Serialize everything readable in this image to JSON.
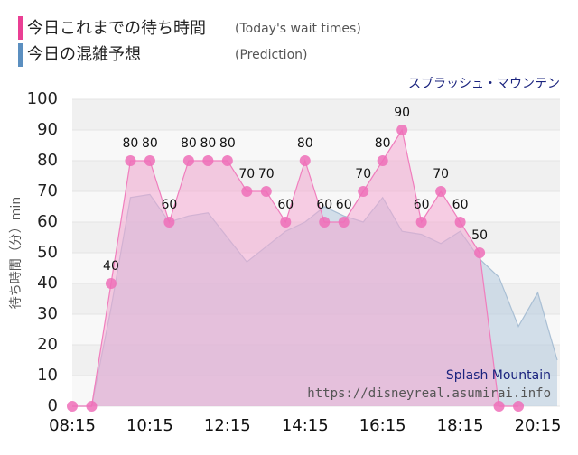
{
  "chart_data": {
    "type": "area",
    "subtitle": "スプラッシュ・マウンテン",
    "y_label": "待ち時間（分）min",
    "legend_notes": [
      "(Today's wait times)",
      "(Prediction)"
    ],
    "watermark": [
      "Splash Mountain",
      "https://disneyreal.asumirai.info"
    ],
    "x": [
      "08:15",
      "08:45",
      "09:15",
      "09:45",
      "10:15",
      "10:45",
      "11:15",
      "11:45",
      "12:15",
      "12:45",
      "13:15",
      "13:45",
      "14:15",
      "14:45",
      "15:15",
      "15:45",
      "16:15",
      "16:45",
      "17:15",
      "17:45",
      "18:15",
      "18:45",
      "19:15",
      "19:45",
      "20:15",
      "20:45"
    ],
    "xlim": [
      "08:15",
      "20:45"
    ],
    "xticks": [
      "08:15",
      "10:15",
      "12:15",
      "14:15",
      "16:15",
      "18:15",
      "20:15"
    ],
    "ylim": [
      0,
      100
    ],
    "yticks": [
      0,
      10,
      20,
      30,
      40,
      50,
      60,
      70,
      80,
      90,
      100
    ],
    "grid": true,
    "series": [
      {
        "name": "今日の混雑予想",
        "color": "#5b8fc0",
        "values": [
          0,
          0,
          32,
          68,
          69,
          60,
          62,
          63,
          55,
          47,
          52,
          57,
          60,
          65,
          62,
          60,
          68,
          57,
          56,
          53,
          57,
          48,
          42,
          26,
          37,
          15
        ]
      },
      {
        "name": "今日これまでの待ち時間",
        "color": "#ea3f94",
        "values": [
          0,
          0,
          40,
          80,
          80,
          60,
          80,
          80,
          80,
          70,
          70,
          60,
          80,
          60,
          60,
          70,
          80,
          90,
          60,
          70,
          60,
          50,
          0,
          0,
          null,
          null
        ],
        "value_labels": [
          null,
          null,
          "40",
          "80",
          "80",
          "60",
          "80",
          "80",
          "80",
          "70",
          "70",
          "60",
          "80",
          "60",
          "60",
          "70",
          "80",
          "90",
          "60",
          "70",
          "60",
          "50",
          null,
          null,
          null,
          null
        ]
      }
    ]
  }
}
